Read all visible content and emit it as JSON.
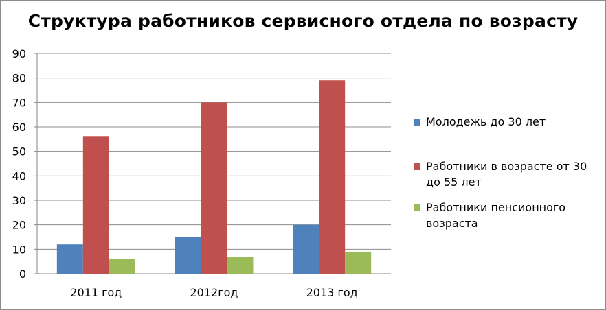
{
  "chart_data": {
    "type": "bar",
    "title": "Структура работников сервисного отдела по возрасту",
    "categories": [
      "2011 год",
      "2012год",
      "2013 год"
    ],
    "series": [
      {
        "name": "Молодежь до 30 лет",
        "color": "#4F81BD",
        "values": [
          12,
          15,
          20
        ]
      },
      {
        "name": "Работники в возрасте от 30 до 55 лет",
        "color": "#C0504D",
        "values": [
          56,
          70,
          79
        ]
      },
      {
        "name": "Работники пенсионного возраста",
        "color": "#9BBB59",
        "values": [
          6,
          7,
          9
        ]
      }
    ],
    "ylim": [
      0,
      90
    ],
    "yticks": [
      0,
      10,
      20,
      30,
      40,
      50,
      60,
      70,
      80,
      90
    ],
    "grid": true,
    "legend_position": "right"
  }
}
